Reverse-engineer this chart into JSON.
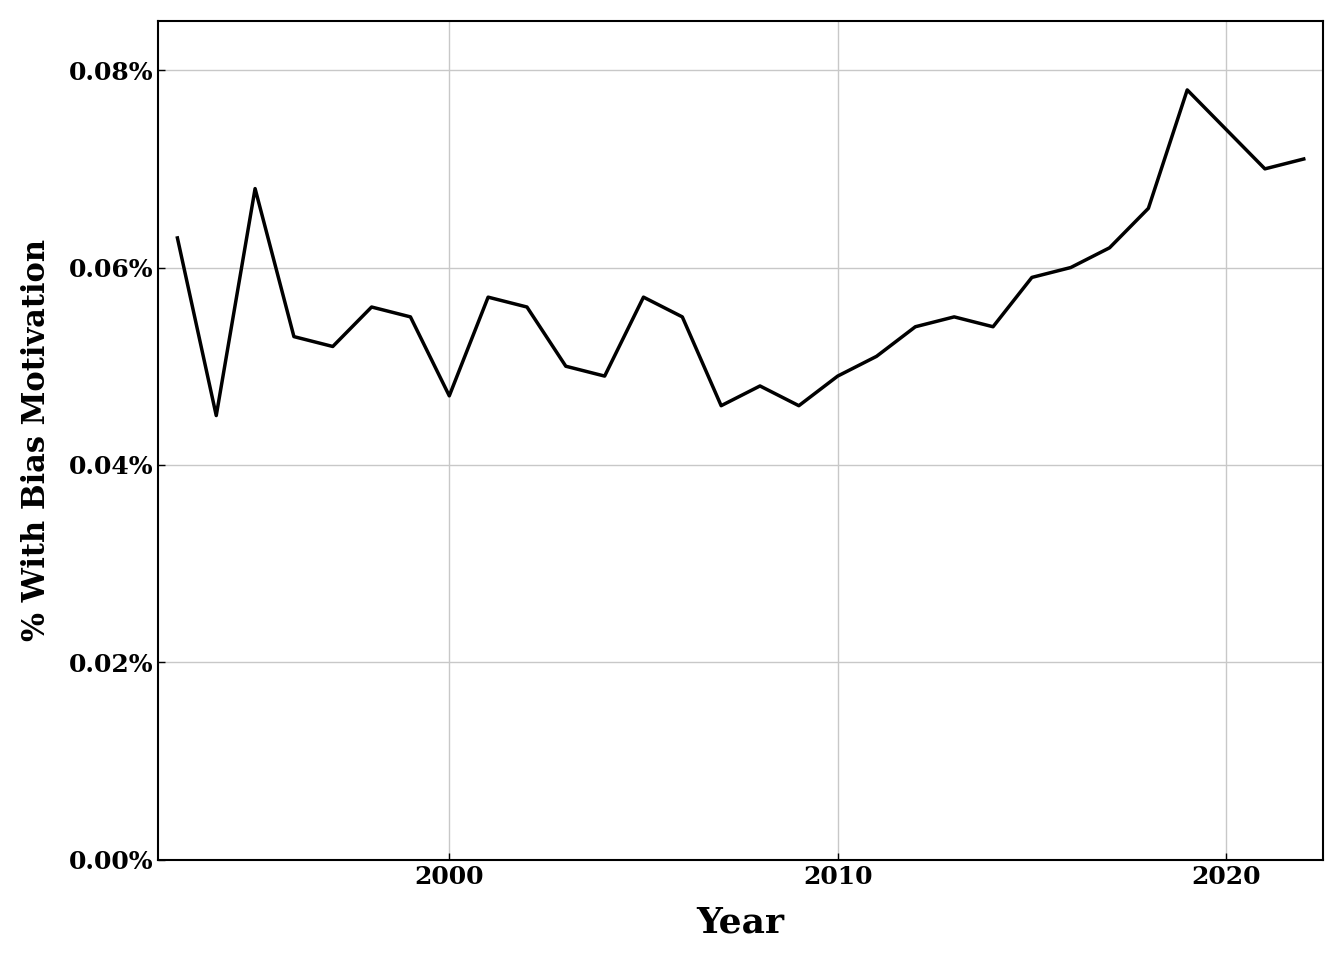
{
  "years": [
    1993,
    1994,
    1995,
    1996,
    1997,
    1998,
    1999,
    2000,
    2001,
    2002,
    2003,
    2004,
    2005,
    2006,
    2007,
    2008,
    2009,
    2010,
    2011,
    2012,
    2013,
    2014,
    2015,
    2016,
    2017,
    2018,
    2019,
    2020,
    2021,
    2022
  ],
  "values": [
    0.00063,
    0.00045,
    0.00068,
    0.00053,
    0.00052,
    0.00056,
    0.00055,
    0.00047,
    0.00057,
    0.00056,
    0.0005,
    0.00049,
    0.00057,
    0.00055,
    0.00046,
    0.00048,
    0.00046,
    0.00049,
    0.00051,
    0.00054,
    0.00055,
    0.00054,
    0.00059,
    0.0006,
    0.00062,
    0.00066,
    0.00078,
    0.00074,
    0.0007,
    0.00071
  ],
  "xlabel": "Year",
  "ylabel": "% With Bias Motivation",
  "ylim": [
    0,
    0.00085
  ],
  "yticks": [
    0.0,
    0.0002,
    0.0004,
    0.0006,
    0.0008
  ],
  "ytick_labels": [
    "0.00%",
    "0.02%",
    "0.04%",
    "0.06%",
    "0.08%"
  ],
  "xticks": [
    2000,
    2010,
    2020
  ],
  "line_color": "#000000",
  "line_width": 2.5,
  "background_color": "#ffffff",
  "panel_background": "#ffffff",
  "grid_color": "#c8c8c8",
  "xlabel_fontsize": 26,
  "ylabel_fontsize": 22,
  "tick_fontsize": 18
}
